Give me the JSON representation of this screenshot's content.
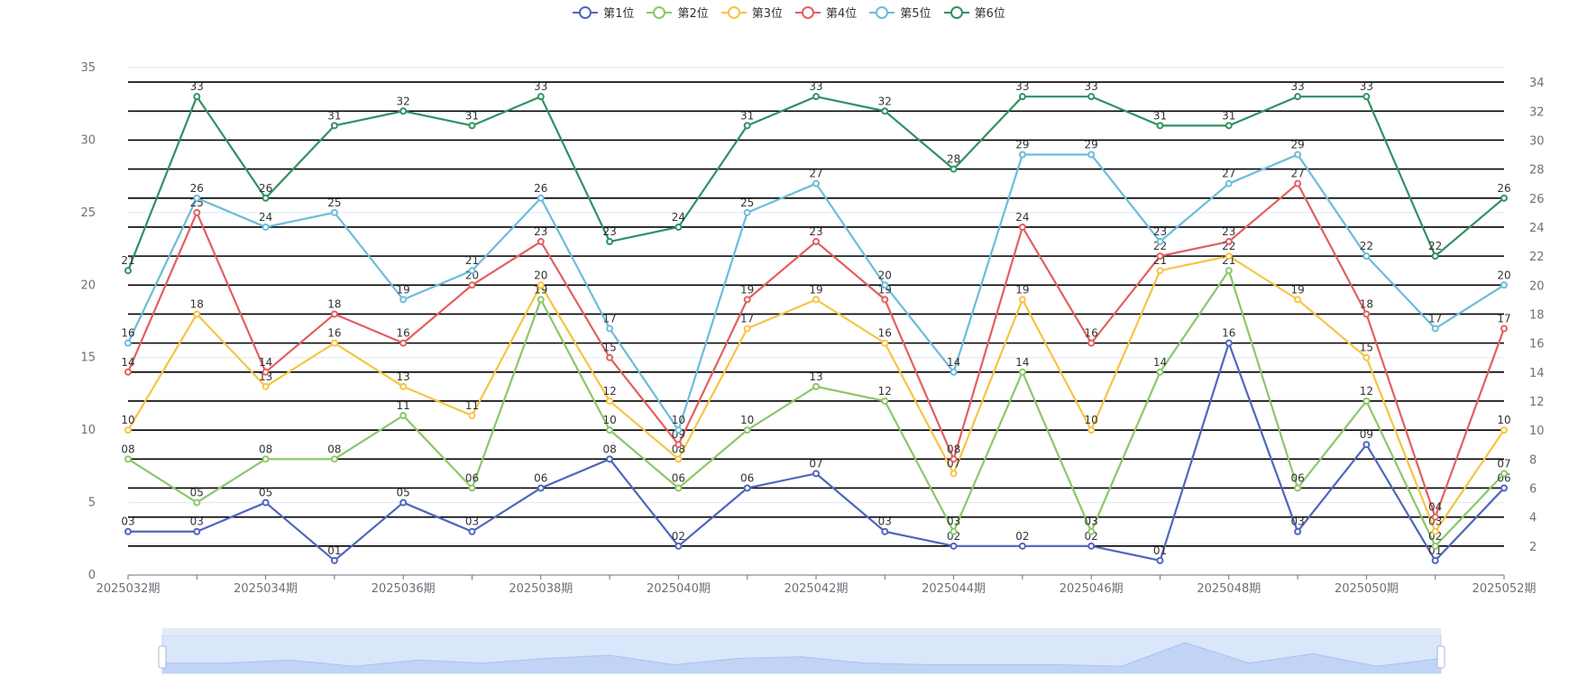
{
  "chart_data": {
    "type": "line",
    "categories": [
      "2025032期",
      "2025033期",
      "2025034期",
      "2025035期",
      "2025036期",
      "2025037期",
      "2025038期",
      "2025039期",
      "2025040期",
      "2025041期",
      "2025042期",
      "2025043期",
      "2025044期",
      "2025045期",
      "2025046期",
      "2025047期",
      "2025048期",
      "2025049期",
      "2025050期",
      "2025051期",
      "2025052期"
    ],
    "x_tick_labels": [
      "2025032期",
      "2025034期",
      "2025036期",
      "2025038期",
      "2025040期",
      "2025042期",
      "2025044期",
      "2025046期",
      "2025048期",
      "2025050期",
      "2025052期"
    ],
    "series": [
      {
        "name": "第1位",
        "color": "#4f66bd",
        "values": [
          3,
          3,
          5,
          1,
          5,
          3,
          6,
          8,
          2,
          6,
          7,
          3,
          2,
          2,
          2,
          1,
          16,
          3,
          9,
          1,
          6
        ],
        "labels": [
          "03",
          "03",
          "05",
          "01",
          "05",
          "03",
          "06",
          "08",
          "02",
          "06",
          "07",
          "03",
          "02",
          "02",
          "02",
          "01",
          "16",
          "03",
          "09",
          "01",
          "06"
        ]
      },
      {
        "name": "第2位",
        "color": "#8cc769",
        "values": [
          8,
          5,
          8,
          8,
          11,
          6,
          19,
          10,
          6,
          10,
          13,
          12,
          3,
          14,
          3,
          14,
          21,
          6,
          12,
          2,
          7
        ],
        "labels": [
          "08",
          "05",
          "08",
          "08",
          "11",
          "06",
          "19",
          "10",
          "06",
          "10",
          "13",
          "12",
          "03",
          "14",
          "03",
          "14",
          "21",
          "06",
          "12",
          "02",
          "07"
        ]
      },
      {
        "name": "第3位",
        "color": "#f7c443",
        "values": [
          10,
          18,
          13,
          16,
          13,
          11,
          20,
          12,
          8,
          17,
          19,
          16,
          7,
          19,
          10,
          21,
          22,
          19,
          15,
          3,
          10
        ],
        "labels": [
          "10",
          "18",
          "13",
          "16",
          "13",
          "11",
          "20",
          "12",
          "08",
          "17",
          "19",
          "16",
          "07",
          "19",
          "10",
          "21",
          "22",
          "19",
          "15",
          "03",
          "10"
        ]
      },
      {
        "name": "第4位",
        "color": "#e35f5f",
        "values": [
          14,
          25,
          14,
          18,
          16,
          20,
          23,
          15,
          9,
          19,
          23,
          19,
          8,
          24,
          16,
          22,
          23,
          27,
          18,
          4,
          17
        ],
        "labels": [
          "14",
          "25",
          "14",
          "18",
          "16",
          "20",
          "23",
          "15",
          "09",
          "19",
          "23",
          "19",
          "08",
          "24",
          "16",
          "22",
          "23",
          "27",
          "18",
          "04",
          "17"
        ]
      },
      {
        "name": "第5位",
        "color": "#6cbcd9",
        "values": [
          16,
          26,
          24,
          25,
          19,
          21,
          26,
          17,
          10,
          25,
          27,
          20,
          14,
          29,
          29,
          23,
          27,
          29,
          22,
          17,
          20
        ],
        "labels": [
          "16",
          "26",
          "24",
          "25",
          "19",
          "21",
          "26",
          "17",
          "10",
          "25",
          "27",
          "20",
          "14",
          "29",
          "29",
          "23",
          "27",
          "29",
          "22",
          "17",
          "20"
        ]
      },
      {
        "name": "第6位",
        "color": "#309162",
        "values": [
          21,
          33,
          26,
          31,
          32,
          31,
          33,
          23,
          24,
          31,
          33,
          32,
          28,
          33,
          33,
          31,
          31,
          33,
          33,
          22,
          26
        ],
        "labels": [
          "21",
          "33",
          "26",
          "31",
          "32",
          "31",
          "33",
          "23",
          "24",
          "31",
          "33",
          "32",
          "28",
          "33",
          "33",
          "31",
          "31",
          "33",
          "33",
          "22",
          "26"
        ]
      }
    ],
    "y_left": {
      "min": 0,
      "max": 35,
      "ticks": [
        "0",
        "5",
        "10",
        "15",
        "20",
        "25",
        "30",
        "35"
      ]
    },
    "y_right": {
      "min": 0,
      "max": 35,
      "ticks": [
        "2",
        "4",
        "6",
        "8",
        "10",
        "12",
        "14",
        "16",
        "18",
        "20",
        "22",
        "24",
        "26",
        "28",
        "30",
        "32",
        "34"
      ]
    },
    "reference_lines": [
      2,
      4,
      6,
      8,
      10,
      12,
      14,
      16,
      18,
      20,
      22,
      24,
      26,
      28,
      30,
      32,
      34
    ],
    "legend_position": "top-center",
    "zoom_slider": {
      "start": 0,
      "end": 1
    }
  }
}
